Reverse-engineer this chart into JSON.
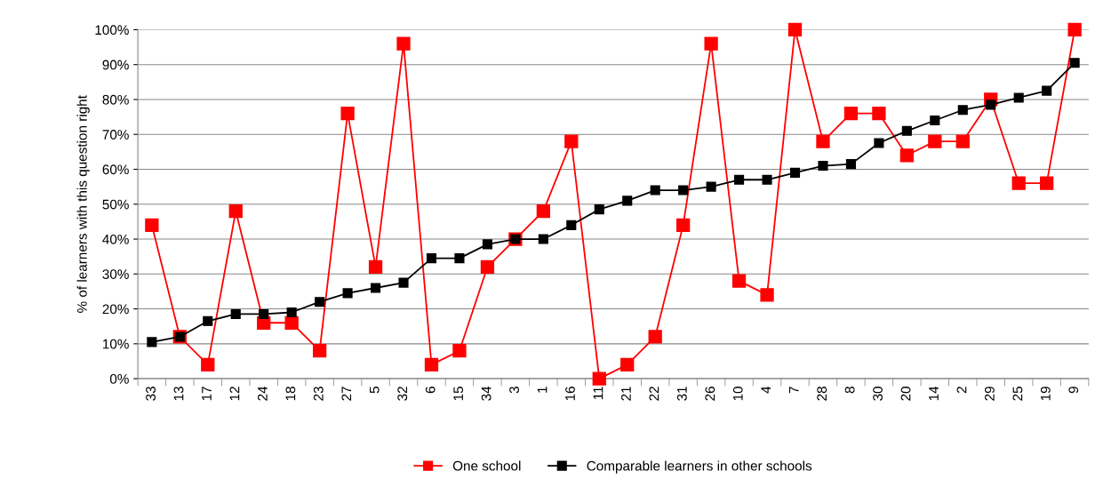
{
  "chart_data": {
    "type": "line",
    "ylabel": "% of learners with this question right",
    "categories": [
      "33",
      "13",
      "17",
      "12",
      "24",
      "18",
      "23",
      "27",
      "5",
      "32",
      "6",
      "15",
      "34",
      "3",
      "1",
      "16",
      "11",
      "21",
      "22",
      "31",
      "26",
      "10",
      "4",
      "7",
      "28",
      "8",
      "30",
      "20",
      "14",
      "2",
      "29",
      "25",
      "19",
      "9"
    ],
    "series": [
      {
        "name": "One school",
        "color": "#ff0000",
        "values": [
          44,
          12,
          4,
          48,
          16,
          16,
          8,
          76,
          32,
          96,
          4,
          8,
          32,
          40,
          48,
          68,
          0,
          4,
          12,
          44,
          96,
          28,
          24,
          100,
          68,
          76,
          76,
          64,
          68,
          68,
          80,
          56,
          56,
          100
        ]
      },
      {
        "name": "Comparable learners in other schools",
        "color": "#000000",
        "values": [
          10.5,
          12,
          16.5,
          18.5,
          18.5,
          19,
          22,
          24.5,
          26,
          27.5,
          34.5,
          34.5,
          38.5,
          40,
          40,
          44,
          48.5,
          51,
          54,
          54,
          55,
          57,
          57,
          59,
          61,
          61.5,
          67.5,
          71,
          74,
          77,
          78.5,
          80.5,
          82.5,
          90.5
        ]
      }
    ],
    "ylim": [
      0,
      100
    ],
    "yticks": [
      {
        "value": 0,
        "label": "0%"
      },
      {
        "value": 10,
        "label": "10%"
      },
      {
        "value": 20,
        "label": "20%"
      },
      {
        "value": 30,
        "label": "30%"
      },
      {
        "value": 40,
        "label": "40%"
      },
      {
        "value": 50,
        "label": "50%"
      },
      {
        "value": 60,
        "label": "60%"
      },
      {
        "value": 70,
        "label": "70%"
      },
      {
        "value": 80,
        "label": "80%"
      },
      {
        "value": 90,
        "label": "90%"
      },
      {
        "value": 100,
        "label": "100%"
      }
    ],
    "grid": "y",
    "legend": "bottom",
    "marker": "square",
    "line_style": "solid"
  }
}
